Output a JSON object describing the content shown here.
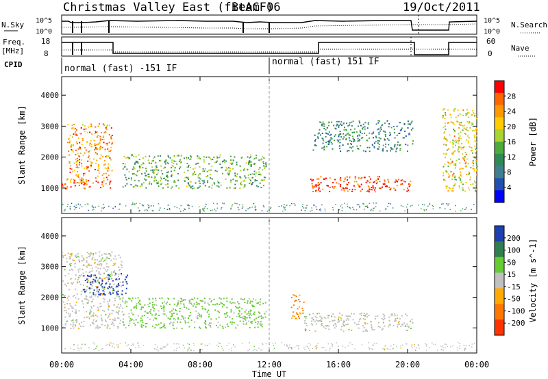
{
  "header": {
    "title": "Christmas Valley East (fitACF)",
    "beam": "Beam 06",
    "date": "19/Oct/2011"
  },
  "top_panels": {
    "nsky_label": "N.Sky",
    "nsky_ticks": [
      "10^5",
      "10^0"
    ],
    "nsearch_label": "N.Search",
    "nsearch_ticks": [
      "10^5",
      "10^0"
    ],
    "freq_label": "Freq.",
    "freq_unit": "[MHz]",
    "freq_ticks": [
      "18",
      "8"
    ],
    "nave_label": "Nave",
    "nave_ticks": [
      "60",
      "0"
    ],
    "cpid_label": "CPID",
    "cpid_segments": [
      {
        "label": "normal (fast) -151 IF",
        "start_hour": 0,
        "end_hour": 12
      },
      {
        "label": "normal (fast) 151 IF",
        "start_hour": 12,
        "end_hour": 24
      }
    ]
  },
  "power_colorbar": {
    "label": "Power [dB]",
    "ticks": [
      "28",
      "24",
      "20",
      "16",
      "12",
      "8",
      "4"
    ],
    "colors": [
      "#ff0000",
      "#ff6600",
      "#ff9900",
      "#ffcc00",
      "#aad42f",
      "#4faa3c",
      "#2e8b57",
      "#3f7f8f",
      "#2050b0",
      "#0000ff"
    ]
  },
  "velocity_colorbar": {
    "label": "Velocity [m s^-1]",
    "ticks": [
      "200",
      "100",
      "50",
      "15",
      "-15",
      "-50",
      "-100",
      "-200"
    ],
    "colors": [
      "#1e3fb0",
      "#2f7f4f",
      "#66cc33",
      "#c0c0c0",
      "#ffaa00",
      "#ff7700",
      "#ff3300"
    ]
  },
  "chart_data": [
    {
      "type": "heatmap",
      "panel": "power",
      "ylabel": "Slant Range [km]",
      "yticks": [
        "1000",
        "2000",
        "3000",
        "4000"
      ],
      "ylim": [
        180,
        4600
      ],
      "xlim": [
        0,
        24
      ],
      "variable": "Power [dB]",
      "features": [
        {
          "name": "near-range backscatter band",
          "t_start": 0.0,
          "t_end": 2.8,
          "range_km": [
            1000,
            1300
          ],
          "power_db": 26
        },
        {
          "name": "rising echo arc",
          "t_start": 0.3,
          "t_end": 2.9,
          "range_km": [
            1200,
            3100
          ],
          "power_db": 22
        },
        {
          "name": "evening band",
          "t_start": 3.5,
          "t_end": 11.8,
          "range_km": [
            1000,
            2100
          ],
          "power_db": 12
        },
        {
          "name": "post-midnight near band",
          "t_start": 14.2,
          "t_end": 20.3,
          "range_km": [
            900,
            1400
          ],
          "power_db": 27
        },
        {
          "name": "upper scatter",
          "t_start": 14.5,
          "t_end": 20.3,
          "range_km": [
            2200,
            3200
          ],
          "power_db": 8
        },
        {
          "name": "late segment",
          "t_start": 22.0,
          "t_end": 24.0,
          "range_km": [
            900,
            3600
          ],
          "power_db": 18
        }
      ]
    },
    {
      "type": "heatmap",
      "panel": "velocity",
      "ylabel": "Slant Range [km]",
      "yticks": [
        "1000",
        "2000",
        "3000",
        "4000"
      ],
      "ylim": [
        180,
        4600
      ],
      "xlim": [
        0,
        24
      ],
      "variable": "Velocity [m s^-1]",
      "features": [
        {
          "name": "low-velocity band",
          "t_start": 0.0,
          "t_end": 3.5,
          "range_km": [
            1000,
            3500
          ],
          "velocity": 0
        },
        {
          "name": "positive velocity cluster",
          "t_start": 1.2,
          "t_end": 3.8,
          "range_km": [
            2100,
            2800
          ],
          "velocity": 180
        },
        {
          "name": "evening mixed band",
          "t_start": 3.5,
          "t_end": 11.8,
          "range_km": [
            1000,
            2000
          ],
          "velocity": 40
        },
        {
          "name": "negative velocity echoes",
          "t_start": 13.2,
          "t_end": 14.0,
          "range_km": [
            1300,
            2100
          ],
          "velocity": -80
        },
        {
          "name": "post-midnight band",
          "t_start": 14.0,
          "t_end": 20.3,
          "range_km": [
            900,
            1500
          ],
          "velocity": 0
        }
      ]
    }
  ],
  "x_axis": {
    "label": "Time UT",
    "ticks": [
      "00:00",
      "04:00",
      "08:00",
      "12:00",
      "16:00",
      "20:00",
      "00:00"
    ]
  }
}
